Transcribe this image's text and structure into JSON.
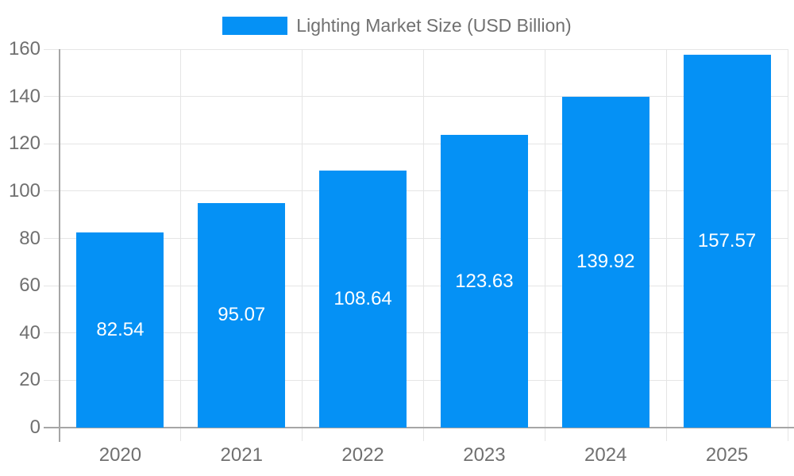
{
  "chart_data": {
    "type": "bar",
    "title": "",
    "legend_label": "Lighting Market Size (USD Billion)",
    "legend_position": "top",
    "categories": [
      "2020",
      "2021",
      "2022",
      "2023",
      "2024",
      "2025"
    ],
    "values": [
      82.54,
      95.07,
      108.64,
      123.63,
      139.92,
      157.57
    ],
    "value_label_format": "2-decimals",
    "xlabel": "",
    "ylabel": "",
    "ylim": [
      0,
      160
    ],
    "yticks": [
      0,
      20,
      40,
      60,
      80,
      100,
      120,
      140,
      160
    ],
    "grid": true,
    "value_labels_inside_bars": true
  },
  "colors": {
    "bar": "#0591F5",
    "text": "#707070",
    "axis": "#A6A6A6",
    "grid": "#E5E5E5",
    "value_label": "#FFFFFF",
    "background": "#FFFFFF"
  }
}
